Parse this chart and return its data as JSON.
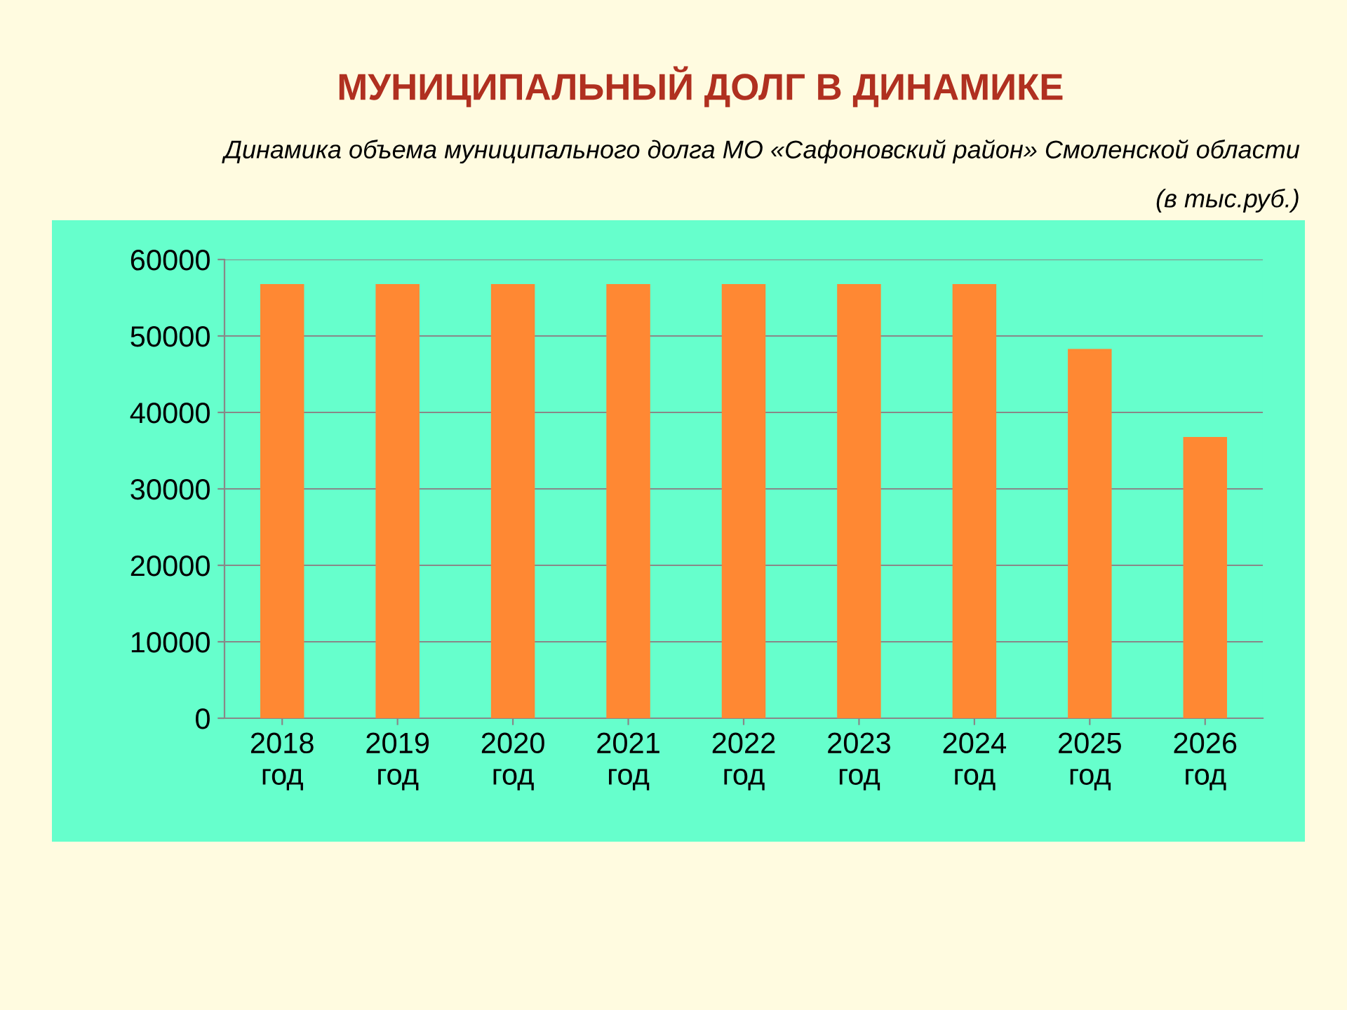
{
  "chart_data": {
    "type": "bar",
    "title": "МУНИЦИПАЛЬНЫЙ ДОЛГ В ДИНАМИКЕ",
    "subtitle": "Динамика объема муниципального долга МО «Сафоновский район» Смоленской области",
    "annotations": [
      "(в тыс.руб.)"
    ],
    "categories": [
      "2018\nгод",
      "2019\nгод",
      "2020\nгод",
      "2021\nгод",
      "2022\nгод",
      "2023\nгод",
      "2024\nгод",
      "2025\nгод",
      "2026\nгод"
    ],
    "values": [
      56800,
      56800,
      56800,
      56800,
      56800,
      56800,
      56800,
      48300,
      36800
    ],
    "color": "#ff8833",
    "ylim": [
      0,
      60000
    ],
    "yticks": [
      0,
      10000,
      20000,
      30000,
      40000,
      50000,
      60000
    ],
    "grid": "y",
    "legend": false
  }
}
